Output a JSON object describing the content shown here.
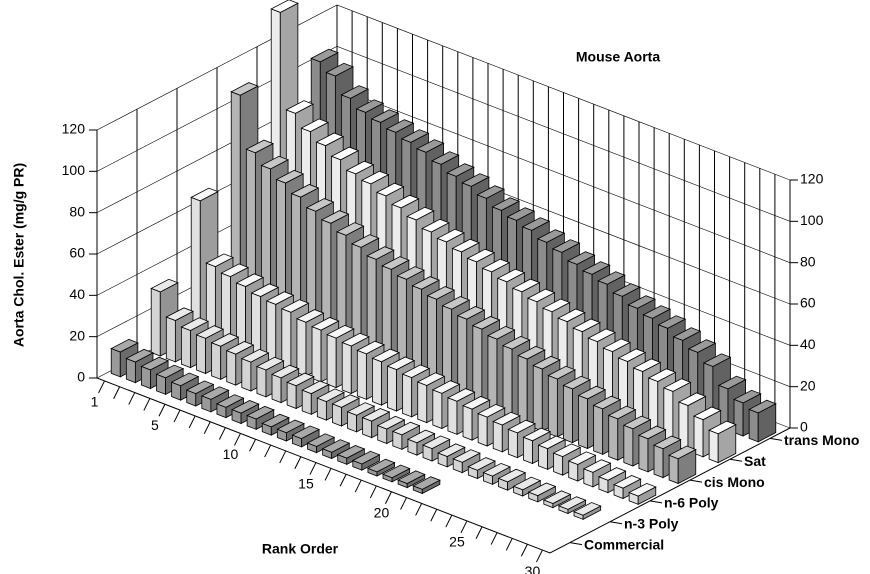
{
  "chart_data": {
    "type": "bar3d",
    "title": "Mouse Aorta",
    "xlabel": "Rank Order",
    "ylabel": "Aorta Chol. Ester (mg/g PR)",
    "categories": [
      "1",
      null,
      null,
      null,
      "5",
      null,
      null,
      null,
      null,
      "10",
      null,
      null,
      null,
      null,
      "15",
      null,
      null,
      null,
      null,
      "20",
      null,
      null,
      null,
      null,
      "25",
      null,
      null,
      null,
      null,
      "30"
    ],
    "ylim": [
      0,
      120
    ],
    "yticks": [
      0,
      20,
      40,
      60,
      80,
      100,
      120
    ],
    "grid": true,
    "series": [
      {
        "name": "Commercial",
        "color": "#9a9a9a",
        "values": [
          12,
          10,
          9,
          8,
          7,
          6,
          6,
          5,
          5,
          5,
          4,
          4,
          4,
          3,
          3,
          3,
          3,
          2,
          2,
          2,
          2,
          null,
          null,
          null,
          null,
          null,
          null,
          null,
          null,
          null
        ]
      },
      {
        "name": "n-3 Poly",
        "color": "#d4d4d4",
        "values": [
          31,
          20,
          18,
          17,
          16,
          15,
          14,
          13,
          12,
          11,
          10,
          9,
          9,
          8,
          8,
          7,
          7,
          6,
          6,
          5,
          5,
          4,
          4,
          4,
          3,
          3,
          2,
          2,
          2,
          null
        ]
      },
      {
        "name": "n-6 Poly",
        "color": "#e0e0e0",
        "values": [
          65,
          36,
          34,
          32,
          30,
          29,
          28,
          26,
          25,
          24,
          23,
          22,
          21,
          20,
          19,
          18,
          17,
          16,
          15,
          14,
          13,
          12,
          11,
          10,
          9,
          8,
          7,
          6,
          5,
          4
        ]
      },
      {
        "name": "cis Mono",
        "color": "#b4b4b4",
        "values": [
          106,
          81,
          76,
          72,
          68,
          64,
          61,
          58,
          55,
          52,
          50,
          48,
          46,
          44,
          42,
          40,
          38,
          36,
          34,
          32,
          30,
          28,
          26,
          24,
          22,
          20,
          18,
          16,
          14,
          12
        ]
      },
      {
        "name": "Sat",
        "color": "#ececec",
        "values": [
          136,
          90,
          84,
          80,
          76,
          72,
          70,
          67,
          64,
          61,
          58,
          56,
          54,
          52,
          50,
          48,
          46,
          44,
          42,
          40,
          38,
          36,
          34,
          32,
          30,
          28,
          26,
          22,
          18,
          14
        ]
      },
      {
        "name": "trans Mono",
        "color": "#8c8c8c",
        "values": [
          102,
          98,
          90,
          86,
          84,
          82,
          80,
          78,
          75,
          72,
          70,
          67,
          64,
          62,
          60,
          57,
          55,
          52,
          50,
          48,
          45,
          42,
          40,
          38,
          35,
          32,
          28,
          20,
          16,
          14
        ]
      }
    ]
  }
}
